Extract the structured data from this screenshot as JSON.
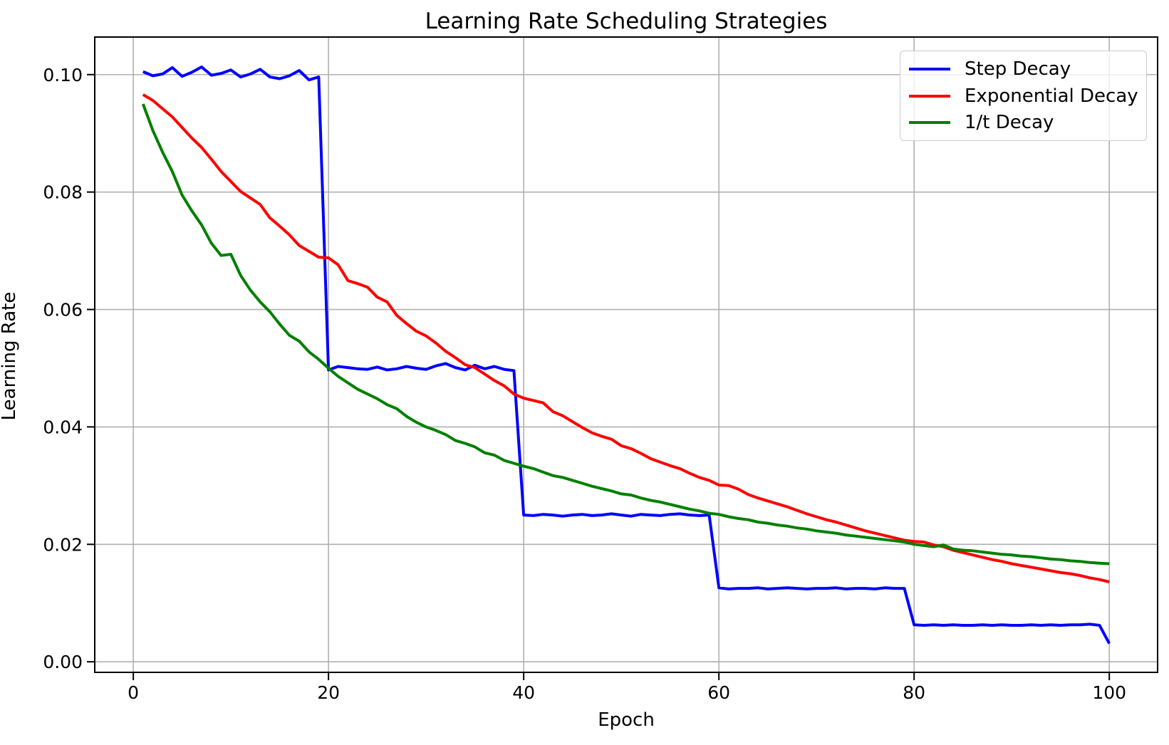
{
  "figure": {
    "title": "Learning Rate Scheduling Strategies",
    "background": "#ffffff"
  },
  "chart_data": {
    "type": "line",
    "title": "Learning Rate Scheduling Strategies",
    "xlabel": "Epoch",
    "ylabel": "Learning Rate",
    "grid": true,
    "grid_color": "#b0b0b0",
    "legend_position": "upper right",
    "xlim": [
      -3.95,
      104.95
    ],
    "ylim": [
      -0.0018,
      0.1064
    ],
    "x_ticks": [
      0,
      20,
      40,
      60,
      80,
      100
    ],
    "x_tick_labels": [
      "0",
      "20",
      "40",
      "60",
      "80",
      "100"
    ],
    "y_ticks": [
      0.0,
      0.02,
      0.04,
      0.06,
      0.08,
      0.1
    ],
    "y_tick_labels": [
      "0.00",
      "0.02",
      "0.04",
      "0.06",
      "0.08",
      "0.10"
    ],
    "x": [
      1,
      2,
      3,
      4,
      5,
      6,
      7,
      8,
      9,
      10,
      11,
      12,
      13,
      14,
      15,
      16,
      17,
      18,
      19,
      20,
      21,
      22,
      23,
      24,
      25,
      26,
      27,
      28,
      29,
      30,
      31,
      32,
      33,
      34,
      35,
      36,
      37,
      38,
      39,
      40,
      41,
      42,
      43,
      44,
      45,
      46,
      47,
      48,
      49,
      50,
      51,
      52,
      53,
      54,
      55,
      56,
      57,
      58,
      59,
      60,
      61,
      62,
      63,
      64,
      65,
      66,
      67,
      68,
      69,
      70,
      71,
      72,
      73,
      74,
      75,
      76,
      77,
      78,
      79,
      80,
      81,
      82,
      83,
      84,
      85,
      86,
      87,
      88,
      89,
      90,
      91,
      92,
      93,
      94,
      95,
      96,
      97,
      98,
      99,
      100
    ],
    "series": [
      {
        "name": "Step Decay",
        "color": "#0000ff",
        "values": [
          0.1005,
          0.0998,
          0.1001,
          0.1012,
          0.0997,
          0.1004,
          0.1013,
          0.0999,
          0.1002,
          0.1008,
          0.0996,
          0.1001,
          0.1009,
          0.0996,
          0.0993,
          0.0998,
          0.1007,
          0.0991,
          0.0996,
          0.0497,
          0.0503,
          0.0501,
          0.0499,
          0.0498,
          0.0502,
          0.0497,
          0.0499,
          0.0503,
          0.05,
          0.0498,
          0.0504,
          0.0508,
          0.0501,
          0.0497,
          0.0505,
          0.0499,
          0.0503,
          0.0498,
          0.0496,
          0.025,
          0.0249,
          0.0251,
          0.025,
          0.0248,
          0.025,
          0.0251,
          0.0249,
          0.025,
          0.0252,
          0.025,
          0.0248,
          0.0251,
          0.025,
          0.0249,
          0.0251,
          0.0252,
          0.025,
          0.0249,
          0.025,
          0.0126,
          0.0124,
          0.0125,
          0.0125,
          0.0126,
          0.0124,
          0.0125,
          0.0126,
          0.0125,
          0.0124,
          0.0125,
          0.0125,
          0.0126,
          0.0124,
          0.0125,
          0.0125,
          0.0124,
          0.0126,
          0.0125,
          0.0125,
          0.0063,
          0.0062,
          0.0063,
          0.0062,
          0.0063,
          0.0062,
          0.0062,
          0.0063,
          0.0062,
          0.0063,
          0.0062,
          0.0062,
          0.0063,
          0.0062,
          0.0063,
          0.0062,
          0.0063,
          0.0063,
          0.0064,
          0.0062,
          0.0031
        ]
      },
      {
        "name": "Exponential Decay",
        "color": "#ff0000",
        "values": [
          0.0966,
          0.0956,
          0.0942,
          0.0928,
          0.091,
          0.0892,
          0.0876,
          0.0856,
          0.0835,
          0.0818,
          0.0801,
          0.079,
          0.0779,
          0.0756,
          0.0742,
          0.0727,
          0.0709,
          0.0699,
          0.0689,
          0.0688,
          0.0676,
          0.0649,
          0.0644,
          0.0638,
          0.0621,
          0.0613,
          0.059,
          0.0576,
          0.0563,
          0.0555,
          0.0543,
          0.0529,
          0.0518,
          0.0506,
          0.0501,
          0.049,
          0.0479,
          0.047,
          0.0456,
          0.0449,
          0.0445,
          0.0441,
          0.0426,
          0.0419,
          0.0409,
          0.0399,
          0.039,
          0.0384,
          0.0379,
          0.0368,
          0.0363,
          0.0355,
          0.0346,
          0.034,
          0.0334,
          0.0329,
          0.0321,
          0.0314,
          0.0309,
          0.0301,
          0.03,
          0.0294,
          0.0285,
          0.0279,
          0.0274,
          0.0269,
          0.0264,
          0.0258,
          0.0252,
          0.0247,
          0.0242,
          0.0238,
          0.0233,
          0.0228,
          0.0223,
          0.0219,
          0.0215,
          0.0211,
          0.0207,
          0.0205,
          0.0204,
          0.0199,
          0.0196,
          0.019,
          0.0186,
          0.0182,
          0.0178,
          0.0174,
          0.0171,
          0.0167,
          0.0164,
          0.0161,
          0.0158,
          0.0155,
          0.0152,
          0.015,
          0.0147,
          0.0143,
          0.014,
          0.0136
        ]
      },
      {
        "name": "1/t Decay",
        "color": "#008000",
        "values": [
          0.095,
          0.0905,
          0.0868,
          0.0835,
          0.0795,
          0.0768,
          0.0744,
          0.0713,
          0.0692,
          0.0694,
          0.0658,
          0.0633,
          0.0613,
          0.0596,
          0.0575,
          0.0556,
          0.0546,
          0.0528,
          0.0515,
          0.05,
          0.0486,
          0.0475,
          0.0464,
          0.0456,
          0.0448,
          0.0438,
          0.0431,
          0.0418,
          0.0408,
          0.04,
          0.0394,
          0.0387,
          0.0377,
          0.0372,
          0.0366,
          0.0356,
          0.0352,
          0.0343,
          0.0338,
          0.0333,
          0.0329,
          0.0323,
          0.0317,
          0.0314,
          0.0309,
          0.0304,
          0.0299,
          0.0295,
          0.0291,
          0.0286,
          0.0284,
          0.0279,
          0.0275,
          0.0272,
          0.0268,
          0.0264,
          0.026,
          0.0257,
          0.0253,
          0.0251,
          0.0247,
          0.0244,
          0.0242,
          0.0238,
          0.0236,
          0.0233,
          0.0231,
          0.0228,
          0.0226,
          0.0223,
          0.0221,
          0.0219,
          0.0216,
          0.0214,
          0.0212,
          0.021,
          0.0208,
          0.0206,
          0.0204,
          0.02,
          0.0198,
          0.0196,
          0.0199,
          0.0192,
          0.019,
          0.0189,
          0.0187,
          0.0185,
          0.0183,
          0.0182,
          0.018,
          0.0179,
          0.0177,
          0.0175,
          0.0174,
          0.0172,
          0.0171,
          0.0169,
          0.0168,
          0.0167
        ]
      }
    ]
  }
}
